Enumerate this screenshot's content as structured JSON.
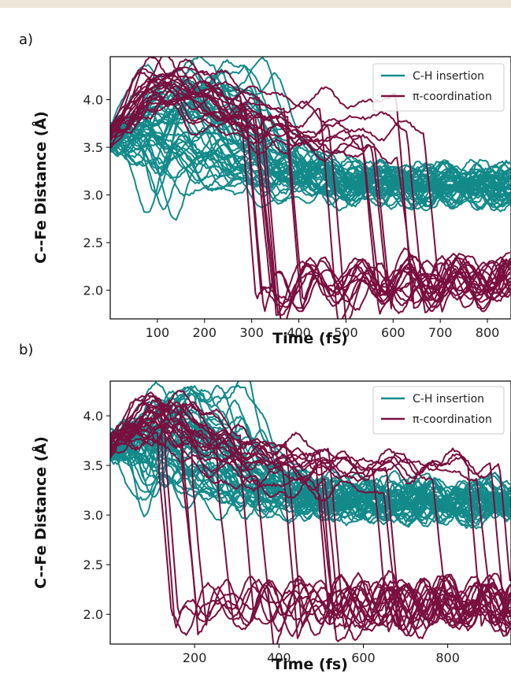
{
  "colors": {
    "ch_insertion": "#138a8a",
    "pi_coordination": "#7a0f3f"
  },
  "chart_data": [
    {
      "type": "line",
      "panel_label": "a)",
      "xlabel": "Time (fs)",
      "ylabel": "C--Fe Distance (Å)",
      "xlim": [
        0,
        850
      ],
      "ylim": [
        1.7,
        4.45
      ],
      "xticks": [
        100,
        200,
        300,
        400,
        500,
        600,
        700,
        800
      ],
      "yticks": [
        2.0,
        2.5,
        3.0,
        3.5,
        4.0
      ],
      "xtick_labels": [
        "100",
        "200",
        "300",
        "400",
        "500",
        "600",
        "700",
        "800"
      ],
      "ytick_labels": [
        "2.0",
        "2.5",
        "3.0",
        "3.5",
        "4.0"
      ],
      "legend_position": "top-right",
      "grid": false,
      "series": [
        {
          "name": "C-H insertion",
          "color": "#138a8a",
          "trajectories": 45,
          "start": 3.6,
          "plateau": 3.1,
          "peak_range": [
            3.3,
            4.4
          ],
          "dip_min": 2.72
        },
        {
          "name": "π-coordination",
          "color": "#7a0f3f",
          "trajectories": 20,
          "start": 3.6,
          "peak_range": [
            3.9,
            4.4
          ],
          "drop_time_range": [
            270,
            740
          ],
          "final": 2.1,
          "final_spread": 0.4
        }
      ]
    },
    {
      "type": "line",
      "panel_label": "b)",
      "xlabel": "Time (fs)",
      "ylabel": "C--Fe Distance (Å)",
      "xlim": [
        0,
        950
      ],
      "ylim": [
        1.7,
        4.35
      ],
      "xticks": [
        200,
        400,
        600,
        800
      ],
      "yticks": [
        2.0,
        2.5,
        3.0,
        3.5,
        4.0
      ],
      "xtick_labels": [
        "200",
        "400",
        "600",
        "800"
      ],
      "ytick_labels": [
        "2.0",
        "2.5",
        "3.0",
        "3.5",
        "4.0"
      ],
      "legend_position": "top-right",
      "grid": false,
      "series": [
        {
          "name": "C-H insertion",
          "color": "#138a8a",
          "trajectories": 45,
          "start": 3.7,
          "plateau": 3.15,
          "peak_range": [
            3.4,
            4.3
          ],
          "dip_min": 2.75
        },
        {
          "name": "π-coordination",
          "color": "#7a0f3f",
          "trajectories": 24,
          "start": 3.7,
          "peak_range": [
            3.8,
            4.25
          ],
          "drop_time_range": [
            50,
            930
          ],
          "final": 2.1,
          "final_spread": 0.4
        }
      ]
    }
  ]
}
